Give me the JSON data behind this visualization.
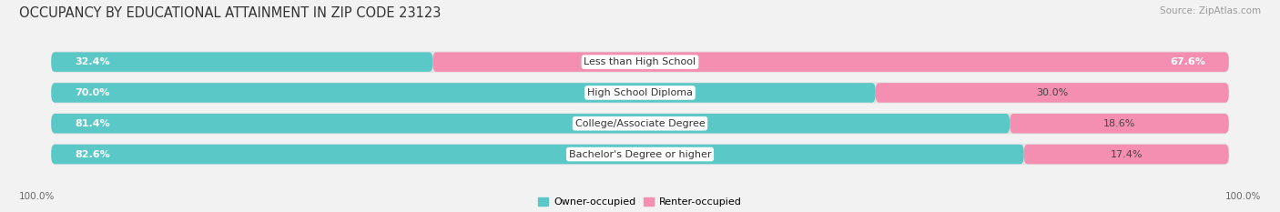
{
  "title": "OCCUPANCY BY EDUCATIONAL ATTAINMENT IN ZIP CODE 23123",
  "source": "Source: ZipAtlas.com",
  "categories": [
    "Less than High School",
    "High School Diploma",
    "College/Associate Degree",
    "Bachelor's Degree or higher"
  ],
  "owner_values": [
    32.4,
    70.0,
    81.4,
    82.6
  ],
  "renter_values": [
    67.6,
    30.0,
    18.6,
    17.4
  ],
  "owner_color": "#5bc8c8",
  "renter_color": "#f48fb1",
  "bg_color": "#f2f2f2",
  "bar_bg_color": "#e2e2e2",
  "title_fontsize": 10.5,
  "source_fontsize": 7.5,
  "label_fontsize": 8,
  "cat_fontsize": 8,
  "legend_label_owner": "Owner-occupied",
  "legend_label_renter": "Renter-occupied",
  "axis_label_left": "100.0%",
  "axis_label_right": "100.0%"
}
